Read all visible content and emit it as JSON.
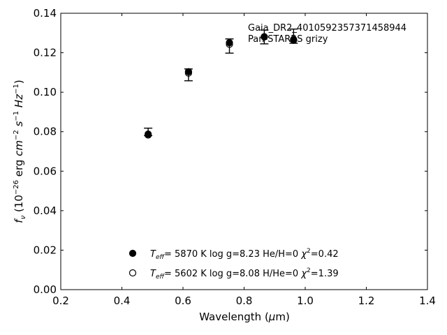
{
  "chart_data": {
    "type": "scatter",
    "xlabel": "Wavelength (μm)",
    "ylabel": "f_ν (10^-26 erg cm^-2 s^-1 Hz^-1)",
    "xlim": [
      0.2,
      1.4
    ],
    "ylim": [
      0.0,
      0.14
    ],
    "xticks": [
      "0.2",
      "0.4",
      "0.6",
      "0.8",
      "1.0",
      "1.2",
      "1.4"
    ],
    "yticks": [
      "0.00",
      "0.02",
      "0.04",
      "0.06",
      "0.08",
      "0.10",
      "0.12",
      "0.14"
    ],
    "annotation_lines": [
      "Gaia_DR2_4010592357371458944",
      "Pan-STARRS grizy"
    ],
    "observed": {
      "x": [
        0.486,
        0.618,
        0.752,
        0.866,
        0.962
      ],
      "y": [
        0.0792,
        0.1102,
        0.1247,
        0.1282,
        0.1268
      ],
      "err_low": [
        0.078,
        0.1058,
        0.1198,
        0.1245,
        0.1248
      ],
      "err_high": [
        0.0818,
        0.1118,
        0.127,
        0.1315,
        0.132
      ]
    },
    "series": [
      {
        "marker": "filled-circle",
        "x": [
          0.486,
          0.618,
          0.752,
          0.866,
          0.962
        ],
        "y": [
          0.0788,
          0.1104,
          0.1251,
          0.1281,
          0.1263
        ]
      },
      {
        "marker": "open-circle",
        "x": [
          0.486,
          0.618,
          0.752,
          0.866,
          0.962
        ],
        "y": [
          0.0783,
          0.1097,
          0.1243,
          0.128,
          0.1267
        ]
      }
    ],
    "legend": {
      "placement": "lower-center",
      "entries": [
        {
          "marker": "filled-circle",
          "teff": "5870 K",
          "logg": "log g=8.23",
          "comp": "He/H=0",
          "chi2": "=0.42"
        },
        {
          "marker": "open-circle",
          "teff": "5602 K",
          "logg": "log g=8.08",
          "comp": "H/He=0",
          "chi2": "=1.39"
        }
      ]
    },
    "grid": false
  }
}
